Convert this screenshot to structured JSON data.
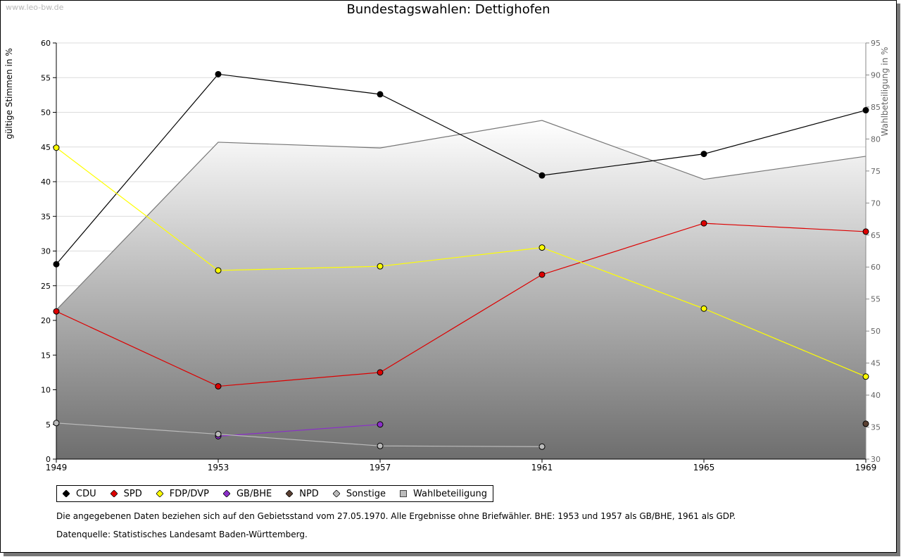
{
  "watermark": "www.leo-bw.de",
  "chart_data": {
    "type": "line",
    "title": "Bundestagswahlen: Dettighofen",
    "ylabel": "gültige Stimmen in %",
    "ylabel_right": "Wahlbeteiligung in %",
    "x": [
      "1949",
      "1953",
      "1957",
      "1961",
      "1965",
      "1969"
    ],
    "ylim": [
      0,
      60
    ],
    "yticks": [
      "0",
      "5",
      "10",
      "15",
      "20",
      "25",
      "30",
      "35",
      "40",
      "45",
      "50",
      "55",
      "60"
    ],
    "ylim_right": [
      30,
      95
    ],
    "yticks_right": [
      "30",
      "35",
      "40",
      "45",
      "50",
      "55",
      "60",
      "65",
      "70",
      "75",
      "80",
      "85",
      "90",
      "95"
    ],
    "grid": true,
    "legend_position": "bottom",
    "series": [
      {
        "name": "CDU",
        "color": "#000000",
        "values": [
          28.1,
          55.5,
          52.6,
          40.9,
          44.0,
          50.3
        ]
      },
      {
        "name": "SPD",
        "color": "#dd0000",
        "values": [
          21.3,
          10.5,
          12.5,
          26.6,
          34.0,
          32.8
        ]
      },
      {
        "name": "FDP/DVP",
        "color": "#ffff00",
        "values": [
          44.9,
          27.2,
          27.8,
          30.5,
          21.7,
          11.9
        ]
      },
      {
        "name": "GB/BHE",
        "color": "#8b2fc9",
        "values": [
          null,
          3.3,
          5.0,
          null,
          null,
          null
        ]
      },
      {
        "name": "NPD",
        "color": "#5a4032",
        "values": [
          null,
          null,
          null,
          null,
          null,
          5.1
        ]
      },
      {
        "name": "Sonstige",
        "color": "#bbbbbb",
        "values": [
          5.2,
          3.6,
          1.9,
          1.8,
          null,
          null
        ]
      }
    ],
    "turnout": {
      "name": "Wahlbeteiligung",
      "color": "#bbbbbb",
      "values": [
        53.3,
        79.5,
        78.6,
        82.9,
        73.7,
        77.3
      ]
    }
  },
  "footnote": "Die angegebenen Daten beziehen sich auf den Gebietsstand vom 27.05.1970. Alle Ergebnisse ohne Briefwähler. BHE: 1953 und 1957 als GB/BHE, 1961 als GDP.",
  "source": "Datenquelle: Statistisches Landesamt Baden-Württemberg."
}
